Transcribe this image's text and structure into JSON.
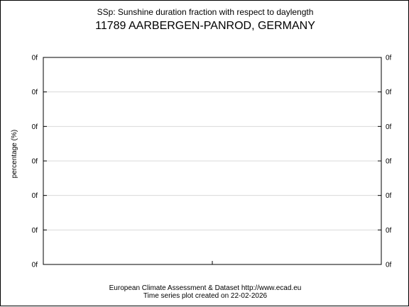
{
  "chart_data": {
    "type": "line",
    "title": "SSp: Sunshine duration fraction with respect to daylength",
    "subtitle": "11789 AARBERGEN-PANROD, GERMANY",
    "xlabel": "",
    "ylabel": "percentage (%)",
    "y_tick_labels": [
      "0f",
      "0f",
      "0f",
      "0f",
      "0f",
      "0f",
      "0f"
    ],
    "x_tick_labels": [],
    "series": [],
    "grid": true,
    "legend": "none"
  },
  "footer": {
    "line1": "European Climate Assessment & Dataset  http://www.ecad.eu",
    "line2": "Time series plot created on 22-02-2026"
  }
}
